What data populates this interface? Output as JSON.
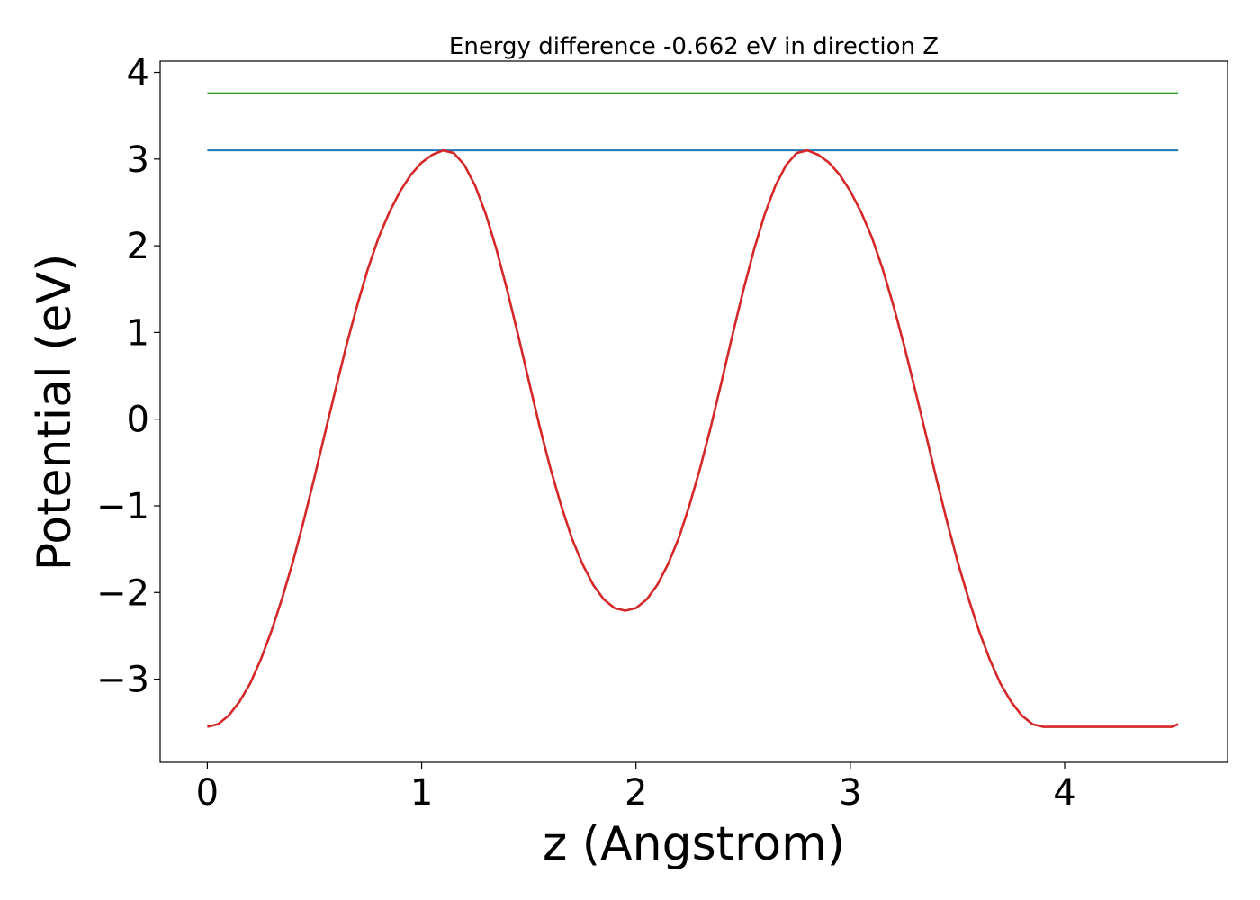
{
  "chart_data": {
    "type": "line",
    "title": "Energy difference -0.662 eV in direction Z",
    "xlabel": "z (Angstrom)",
    "ylabel": "Potential (eV)",
    "xlim": [
      -0.22,
      4.76
    ],
    "ylim": [
      -3.96,
      4.13
    ],
    "xticks": [
      0,
      1,
      2,
      3,
      4
    ],
    "xtick_labels": [
      "0",
      "1",
      "2",
      "3",
      "4"
    ],
    "yticks": [
      -3,
      -2,
      -1,
      0,
      1,
      2,
      3,
      4
    ],
    "ytick_labels": [
      "−3",
      "−2",
      "−1",
      "0",
      "1",
      "2",
      "3",
      "4"
    ],
    "grid": false,
    "legend": "none",
    "series": [
      {
        "color": "#d62728",
        "x": [
          0.0,
          0.05,
          0.1,
          0.15,
          0.2,
          0.25,
          0.3,
          0.35,
          0.4,
          0.45,
          0.5,
          0.55,
          0.6,
          0.65,
          0.7,
          0.75,
          0.8,
          0.85,
          0.9,
          0.95,
          1.0,
          1.05,
          1.1,
          1.15,
          1.2,
          1.25,
          1.3,
          1.35,
          1.4,
          1.45,
          1.5,
          1.55,
          1.6,
          1.65,
          1.7,
          1.75,
          1.8,
          1.85,
          1.9,
          1.95,
          2.0,
          2.05,
          2.1,
          2.15,
          2.2,
          2.25,
          2.3,
          2.35,
          2.4,
          2.45,
          2.5,
          2.55,
          2.6,
          2.65,
          2.7,
          2.75,
          2.8,
          2.85,
          2.9,
          2.95,
          3.0,
          3.05,
          3.1,
          3.15,
          3.2,
          3.25,
          3.3,
          3.35,
          3.4,
          3.45,
          3.5,
          3.55,
          3.6,
          3.65,
          3.7,
          3.75,
          3.8,
          3.85,
          3.9,
          3.95,
          4.0,
          4.05,
          4.1,
          4.15,
          4.2,
          4.25,
          4.3,
          4.35,
          4.4,
          4.45,
          4.5,
          4.53
        ],
        "y": [
          -3.55,
          -3.52,
          -3.42,
          -3.26,
          -3.05,
          -2.77,
          -2.44,
          -2.06,
          -1.64,
          -1.17,
          -0.67,
          -0.15,
          0.36,
          0.86,
          1.32,
          1.74,
          2.1,
          2.39,
          2.63,
          2.82,
          2.96,
          3.05,
          3.1,
          3.07,
          2.93,
          2.69,
          2.36,
          1.95,
          1.48,
          0.97,
          0.44,
          -0.08,
          -0.56,
          -0.99,
          -1.37,
          -1.67,
          -1.91,
          -2.08,
          -2.18,
          -2.21,
          -2.18,
          -2.08,
          -1.91,
          -1.67,
          -1.37,
          -0.99,
          -0.56,
          -0.08,
          0.44,
          0.97,
          1.48,
          1.95,
          2.36,
          2.69,
          2.93,
          3.07,
          3.1,
          3.05,
          2.96,
          2.82,
          2.63,
          2.39,
          2.1,
          1.74,
          1.32,
          0.86,
          0.36,
          -0.15,
          -0.67,
          -1.17,
          -1.64,
          -2.06,
          -2.44,
          -2.77,
          -3.05,
          -3.26,
          -3.42,
          -3.52,
          -3.55,
          -3.55,
          -3.55,
          -3.55,
          -3.55,
          -3.55,
          -3.55,
          -3.55,
          -3.55,
          -3.55,
          -3.55,
          -3.55,
          -3.55,
          -3.52
        ]
      },
      {
        "color": "#1f77b4",
        "x": [
          0.0,
          4.53
        ],
        "y": [
          3.1,
          3.1
        ]
      },
      {
        "color": "#2ca02c",
        "x": [
          0.0,
          4.53
        ],
        "y": [
          3.76,
          3.76
        ]
      }
    ]
  }
}
